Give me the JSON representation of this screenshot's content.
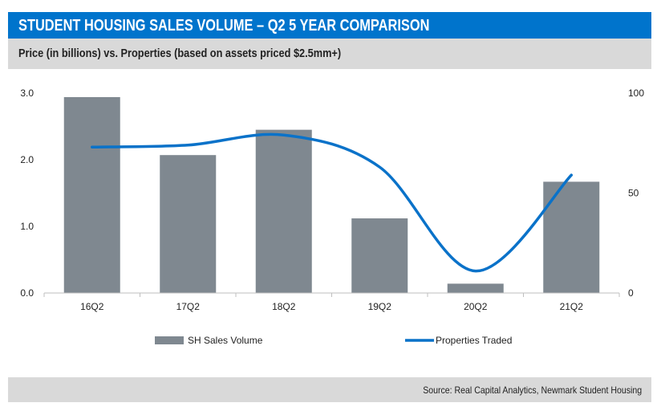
{
  "header": {
    "title": "STUDENT HOUSING SALES VOLUME – Q2 5 YEAR COMPARISON",
    "subtitle": "Price (in billions) vs. Properties (based on assets priced $2.5mm+)"
  },
  "source": "Source: Real Capital Analytics, Newmark Student Housing",
  "colors": {
    "header": "#0074CC",
    "bar": "#7f8890",
    "line": "#0a72c9"
  },
  "chart_data": {
    "type": "bar+line",
    "categories": [
      "16Q2",
      "17Q2",
      "18Q2",
      "19Q2",
      "20Q2",
      "21Q2"
    ],
    "series": [
      {
        "name": "SH Sales Volume",
        "type": "bar",
        "axis": "left",
        "values": [
          2.94,
          2.07,
          2.45,
          1.12,
          0.14,
          1.67
        ]
      },
      {
        "name": "Properties Traded",
        "type": "line",
        "axis": "right",
        "values": [
          73,
          74,
          79,
          63,
          11,
          59
        ]
      }
    ],
    "y_left": {
      "ylim": [
        0,
        3
      ],
      "ticks": [
        "0.0",
        "1.0",
        "2.0",
        "3.0"
      ]
    },
    "y_right": {
      "ylim": [
        0,
        100
      ],
      "ticks": [
        "0",
        "50",
        "100"
      ]
    },
    "grid": false,
    "legend": "bottom"
  }
}
